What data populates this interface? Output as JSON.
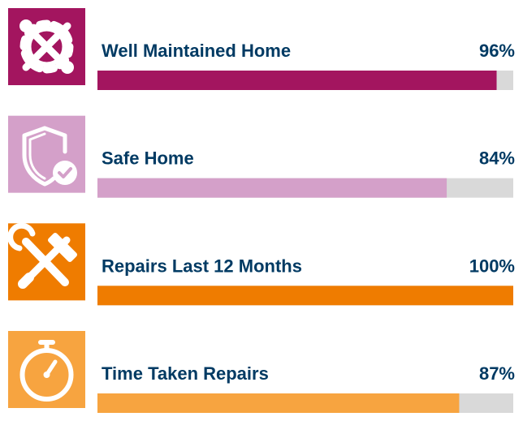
{
  "chart_data": {
    "type": "progress",
    "categories": [
      "Well Maintained Home",
      "Safe Home",
      "Repairs Last 12 Months",
      "Time Taken Repairs"
    ],
    "values": [
      96,
      84,
      100,
      87
    ],
    "value_labels": [
      "96%",
      "84%",
      "100%",
      "87%"
    ],
    "colors": [
      "#a3155f",
      "#d4a0c9",
      "#ef7c00",
      "#f7a440"
    ],
    "xlim": [
      0,
      100
    ]
  }
}
